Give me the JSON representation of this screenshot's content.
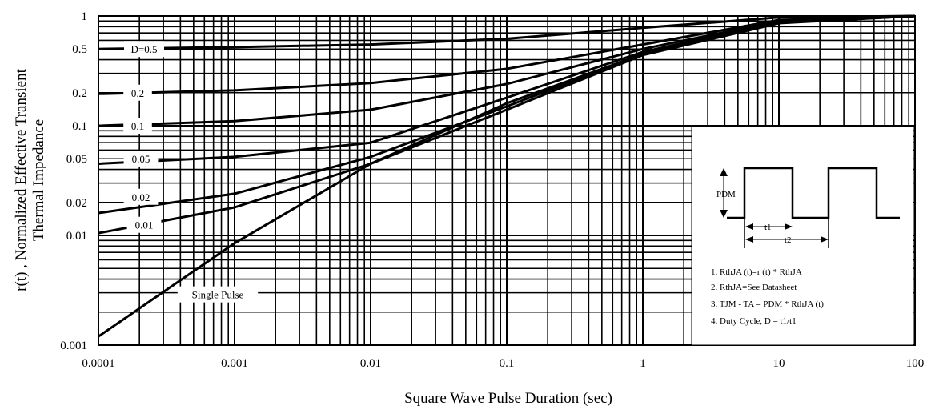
{
  "chart_data": {
    "type": "line",
    "title": "",
    "xlabel": "Square Wave Pulse Duration (sec)",
    "ylabel_line1": "r(t) , Normalized Effective Transient",
    "ylabel_line2": "Thermal Impedance",
    "x_scale": "log",
    "y_scale": "log",
    "xlim": [
      0.0001,
      100
    ],
    "ylim": [
      0.001,
      1
    ],
    "grid": true,
    "x_ticks": [
      {
        "value": 0.0001,
        "label": "0.0001"
      },
      {
        "value": 0.001,
        "label": "0.001"
      },
      {
        "value": 0.01,
        "label": "0.01"
      },
      {
        "value": 0.1,
        "label": "0.1"
      },
      {
        "value": 1,
        "label": "1"
      },
      {
        "value": 10,
        "label": "10"
      },
      {
        "value": 100,
        "label": "100"
      }
    ],
    "y_ticks": [
      {
        "value": 1,
        "label": "1"
      },
      {
        "value": 0.5,
        "label": "0.5"
      },
      {
        "value": 0.2,
        "label": "0.2"
      },
      {
        "value": 0.1,
        "label": "0.1"
      },
      {
        "value": 0.05,
        "label": "0.05"
      },
      {
        "value": 0.02,
        "label": "0.02"
      },
      {
        "value": 0.01,
        "label": "0.01"
      },
      {
        "value": 0.001,
        "label": "0.001"
      }
    ],
    "series": [
      {
        "name": "D=0.5",
        "x": [
          0.0001,
          0.001,
          0.01,
          0.1,
          1,
          10,
          100
        ],
        "y": [
          0.5,
          0.52,
          0.55,
          0.62,
          0.78,
          0.97,
          1.0
        ]
      },
      {
        "name": "0.2",
        "x": [
          0.0001,
          0.001,
          0.01,
          0.1,
          1,
          10,
          100
        ],
        "y": [
          0.195,
          0.21,
          0.245,
          0.33,
          0.55,
          0.92,
          1.0
        ]
      },
      {
        "name": "0.1",
        "x": [
          0.0001,
          0.001,
          0.01,
          0.1,
          1,
          10,
          100
        ],
        "y": [
          0.1,
          0.11,
          0.14,
          0.24,
          0.5,
          0.9,
          1.0
        ]
      },
      {
        "name": "0.05",
        "x": [
          0.0001,
          0.001,
          0.01,
          0.1,
          1,
          10,
          100
        ],
        "y": [
          0.045,
          0.052,
          0.07,
          0.18,
          0.47,
          0.88,
          1.0
        ]
      },
      {
        "name": "0.02",
        "x": [
          0.0001,
          0.001,
          0.01,
          0.1,
          1,
          10,
          100
        ],
        "y": [
          0.016,
          0.024,
          0.052,
          0.15,
          0.45,
          0.87,
          1.0
        ]
      },
      {
        "name": "0.01",
        "x": [
          0.0001,
          0.001,
          0.01,
          0.1,
          1,
          10,
          100
        ],
        "y": [
          0.0105,
          0.018,
          0.045,
          0.14,
          0.44,
          0.86,
          1.0
        ]
      },
      {
        "name": "Single Pulse",
        "x": [
          0.0001,
          0.001,
          0.01,
          0.1,
          1,
          10,
          100
        ],
        "y": [
          0.0012,
          0.0085,
          0.045,
          0.16,
          0.45,
          0.87,
          1.0
        ]
      }
    ],
    "inset": {
      "labels": {
        "pdm": "PDM",
        "t1": "t1",
        "t2": "t2"
      },
      "notes": [
        "1. RthJA (t)=r (t) * RthJA",
        "2. RthJA=See Datasheet",
        "3. TJM - TA = PDM * RthJA (t)",
        "4. Duty Cycle, D = t1/t1"
      ]
    }
  }
}
